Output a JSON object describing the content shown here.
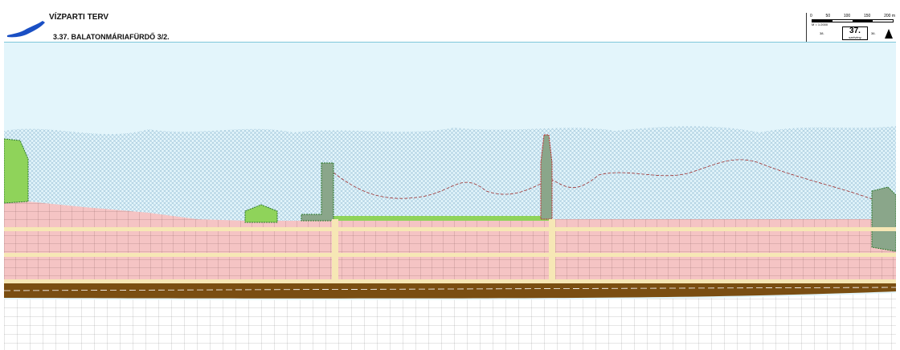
{
  "header": {
    "title": "VÍZPARTI TERV",
    "subtitle": "3.37. BALATONMÁRIAFÜRDŐ  3/2."
  },
  "scale": {
    "ticks": [
      "0",
      "50",
      "100",
      "150",
      "200 m"
    ],
    "text": "M = 1:2000",
    "sheet_number": "37.",
    "sheet_label": "szelvény",
    "prev_sheet": "38.",
    "next_sheet": "36."
  },
  "icons": {
    "logo": "lake-balaton-silhouette",
    "north": "north-arrow-icon"
  },
  "colors": {
    "water": "#e3f5fb",
    "reed": "#b9d9e8",
    "plots": "#f5c4c4",
    "green": "#8fd35a",
    "road": "#f6e7b5",
    "rail": "#7a4e12",
    "accent": "#1a4fc4"
  }
}
